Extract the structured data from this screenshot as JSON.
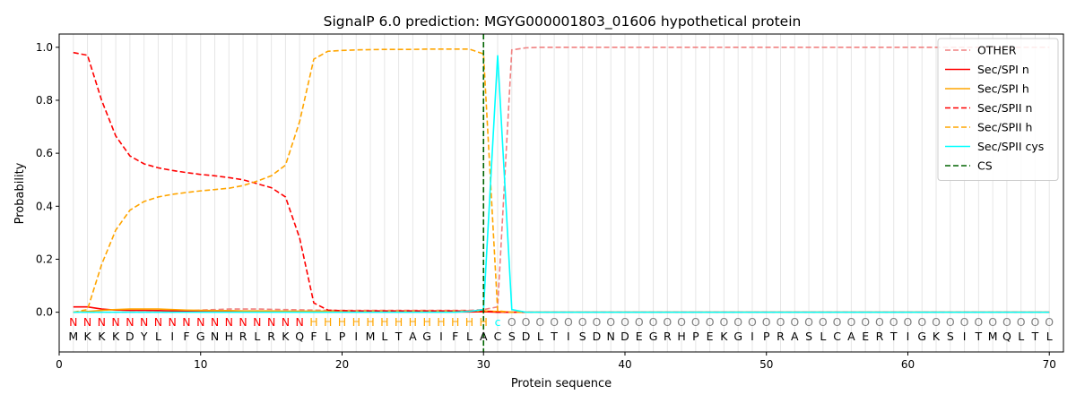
{
  "chart_data": {
    "type": "line",
    "title": "SignalP 6.0 prediction: MGYG000001803_01606 hypothetical protein",
    "xlabel": "Protein sequence",
    "ylabel": "Probability",
    "xlim": [
      0,
      71
    ],
    "ylim": [
      -0.15,
      1.05
    ],
    "xticks": [
      0,
      10,
      20,
      30,
      40,
      50,
      60,
      70
    ],
    "yticks": [
      0.0,
      0.2,
      0.4,
      0.6,
      0.8,
      1.0
    ],
    "grid": "vertical lines at each residue",
    "legend_position": "top-right",
    "sequence": [
      "M",
      "K",
      "K",
      "K",
      "D",
      "Y",
      "L",
      "I",
      "F",
      "G",
      "N",
      "H",
      "R",
      "L",
      "R",
      "K",
      "Q",
      "F",
      "L",
      "P",
      "I",
      "M",
      "L",
      "T",
      "A",
      "G",
      "I",
      "F",
      "L",
      "A",
      "C",
      "S",
      "D",
      "L",
      "T",
      "I",
      "S",
      "D",
      "N",
      "D",
      "E",
      "G",
      "R",
      "H",
      "P",
      "E",
      "K",
      "G",
      "I",
      "P",
      "R",
      "A",
      "S",
      "L",
      "C",
      "A",
      "E",
      "R",
      "T",
      "I",
      "G",
      "K",
      "S",
      "I",
      "T",
      "M",
      "Q",
      "L",
      "T",
      "L"
    ],
    "region_labels": [
      "N",
      "N",
      "N",
      "N",
      "N",
      "N",
      "N",
      "N",
      "N",
      "N",
      "N",
      "N",
      "N",
      "N",
      "N",
      "N",
      "N",
      "H",
      "H",
      "H",
      "H",
      "H",
      "H",
      "H",
      "H",
      "H",
      "H",
      "H",
      "H",
      "H",
      "c",
      "O",
      "O",
      "O",
      "O",
      "O",
      "O",
      "O",
      "O",
      "O",
      "O",
      "O",
      "O",
      "O",
      "O",
      "O",
      "O",
      "O",
      "O",
      "O",
      "O",
      "O",
      "O",
      "O",
      "O",
      "O",
      "O",
      "O",
      "O",
      "O",
      "O",
      "O",
      "O",
      "O",
      "O",
      "O",
      "O",
      "O",
      "O",
      "O"
    ],
    "region_colors": {
      "N": "#ff0000",
      "H": "#ffa500",
      "c": "#00ffff",
      "O": "#808080"
    },
    "cleavage_site": 30,
    "series": [
      {
        "name": "OTHER",
        "color": "#f08080",
        "dash": "dashed",
        "values": [
          0.0,
          0.0,
          0.0,
          0.0,
          0.0,
          0.0,
          0.0,
          0.0,
          0.005,
          0.008,
          0.01,
          0.012,
          0.012,
          0.012,
          0.011,
          0.01,
          0.009,
          0.008,
          0.007,
          0.007,
          0.007,
          0.007,
          0.007,
          0.007,
          0.007,
          0.007,
          0.007,
          0.007,
          0.007,
          0.01,
          0.02,
          0.99,
          0.998,
          1.0,
          1.0,
          1.0,
          1.0,
          1.0,
          1.0,
          1.0,
          1.0,
          1.0,
          1.0,
          1.0,
          1.0,
          1.0,
          1.0,
          1.0,
          1.0,
          1.0,
          1.0,
          1.0,
          1.0,
          1.0,
          1.0,
          1.0,
          1.0,
          1.0,
          1.0,
          1.0,
          1.0,
          1.0,
          1.0,
          1.0,
          1.0,
          1.0,
          1.0,
          1.0,
          1.0,
          1.0
        ]
      },
      {
        "name": "Sec/SPI n",
        "color": "#ff0000",
        "dash": "solid",
        "values": [
          0.02,
          0.02,
          0.012,
          0.008,
          0.007,
          0.007,
          0.006,
          0.005,
          0.004,
          0.004,
          0.003,
          0.003,
          0.003,
          0.003,
          0.003,
          0.002,
          0.002,
          0.001,
          0.001,
          0.001,
          0.001,
          0.001,
          0.001,
          0.001,
          0.001,
          0.001,
          0.001,
          0.001,
          0.001,
          0.002,
          0.0,
          0.0,
          0.0,
          0.0,
          0.0,
          0.0,
          0.0,
          0.0,
          0.0,
          0.0,
          0.0,
          0.0,
          0.0,
          0.0,
          0.0,
          0.0,
          0.0,
          0.0,
          0.0,
          0.0,
          0.0,
          0.0,
          0.0,
          0.0,
          0.0,
          0.0,
          0.0,
          0.0,
          0.0,
          0.0,
          0.0,
          0.0,
          0.0,
          0.0,
          0.0,
          0.0,
          0.0,
          0.0,
          0.0,
          0.0
        ]
      },
      {
        "name": "Sec/SPI h",
        "color": "#ffa500",
        "dash": "solid",
        "values": [
          0.0,
          0.003,
          0.007,
          0.01,
          0.012,
          0.012,
          0.012,
          0.01,
          0.008,
          0.007,
          0.006,
          0.006,
          0.005,
          0.005,
          0.005,
          0.004,
          0.004,
          0.004,
          0.004,
          0.004,
          0.004,
          0.004,
          0.004,
          0.004,
          0.004,
          0.004,
          0.004,
          0.004,
          0.004,
          0.005,
          0.003,
          0.0,
          0.0,
          0.0,
          0.0,
          0.0,
          0.0,
          0.0,
          0.0,
          0.0,
          0.0,
          0.0,
          0.0,
          0.0,
          0.0,
          0.0,
          0.0,
          0.0,
          0.0,
          0.0,
          0.0,
          0.0,
          0.0,
          0.0,
          0.0,
          0.0,
          0.0,
          0.0,
          0.0,
          0.0,
          0.0,
          0.0,
          0.0,
          0.0,
          0.0,
          0.0,
          0.0,
          0.0,
          0.0,
          0.0
        ]
      },
      {
        "name": "Sec/SPII n",
        "color": "#ff0000",
        "dash": "dashed",
        "values": [
          0.98,
          0.97,
          0.8,
          0.665,
          0.59,
          0.56,
          0.545,
          0.535,
          0.527,
          0.52,
          0.515,
          0.508,
          0.5,
          0.485,
          0.47,
          0.435,
          0.28,
          0.035,
          0.008,
          0.006,
          0.005,
          0.005,
          0.005,
          0.005,
          0.005,
          0.005,
          0.005,
          0.005,
          0.004,
          0.004,
          0.0,
          0.0,
          0.0,
          0.0,
          0.0,
          0.0,
          0.0,
          0.0,
          0.0,
          0.0,
          0.0,
          0.0,
          0.0,
          0.0,
          0.0,
          0.0,
          0.0,
          0.0,
          0.0,
          0.0,
          0.0,
          0.0,
          0.0,
          0.0,
          0.0,
          0.0,
          0.0,
          0.0,
          0.0,
          0.0,
          0.0,
          0.0,
          0.0,
          0.0,
          0.0,
          0.0,
          0.0,
          0.0,
          0.0,
          0.0
        ]
      },
      {
        "name": "Sec/SPII h",
        "color": "#ffa500",
        "dash": "dashed",
        "values": [
          0.0,
          0.01,
          0.18,
          0.31,
          0.385,
          0.418,
          0.435,
          0.445,
          0.452,
          0.458,
          0.463,
          0.468,
          0.478,
          0.495,
          0.515,
          0.555,
          0.72,
          0.955,
          0.985,
          0.988,
          0.99,
          0.991,
          0.992,
          0.992,
          0.992,
          0.993,
          0.993,
          0.993,
          0.993,
          0.975,
          0.005,
          0.0,
          0.0,
          0.0,
          0.0,
          0.0,
          0.0,
          0.0,
          0.0,
          0.0,
          0.0,
          0.0,
          0.0,
          0.0,
          0.0,
          0.0,
          0.0,
          0.0,
          0.0,
          0.0,
          0.0,
          0.0,
          0.0,
          0.0,
          0.0,
          0.0,
          0.0,
          0.0,
          0.0,
          0.0,
          0.0,
          0.0,
          0.0,
          0.0,
          0.0,
          0.0,
          0.0,
          0.0,
          0.0,
          0.0
        ]
      },
      {
        "name": "Sec/SPII cys",
        "color": "#00ffff",
        "dash": "solid",
        "values": [
          0.0,
          0.0,
          0.0,
          0.0,
          0.0,
          0.0,
          0.0,
          0.0,
          0.0,
          0.0,
          0.0,
          0.0,
          0.0,
          0.0,
          0.0,
          0.0,
          0.0,
          0.0,
          0.0,
          0.0,
          0.0,
          0.0,
          0.0,
          0.0,
          0.0,
          0.0,
          0.0,
          0.0,
          0.003,
          0.01,
          0.97,
          0.01,
          0.0,
          0.0,
          0.0,
          0.0,
          0.0,
          0.0,
          0.0,
          0.0,
          0.0,
          0.0,
          0.0,
          0.0,
          0.0,
          0.0,
          0.0,
          0.0,
          0.0,
          0.0,
          0.0,
          0.0,
          0.0,
          0.0,
          0.0,
          0.0,
          0.0,
          0.0,
          0.0,
          0.0,
          0.0,
          0.0,
          0.0,
          0.0,
          0.0,
          0.0,
          0.0,
          0.0,
          0.0,
          0.0
        ]
      },
      {
        "name": "CS",
        "color": "#006400",
        "dash": "dashed",
        "x": 30
      }
    ]
  }
}
